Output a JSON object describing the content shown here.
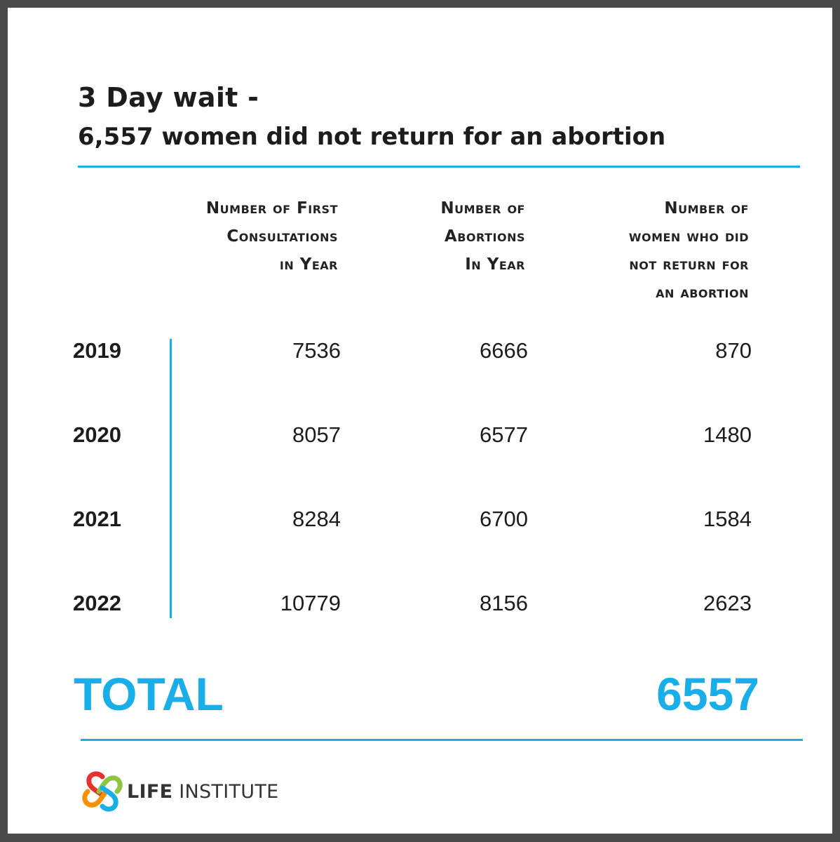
{
  "title": "3 Day wait -",
  "subtitle": "6,557 women did not return for an abortion",
  "colors": {
    "accent": "#1aaee6",
    "text": "#1c1c1c",
    "logo_red": "#e5322d",
    "logo_orange": "#f39200",
    "logo_green": "#8cc63f",
    "logo_blue": "#1aaee6"
  },
  "chart_data": {
    "type": "table",
    "columns": [
      "Number of First Consultations in Year",
      "Number of Abortions In Year",
      "Number of women who did not return for an abortion"
    ],
    "column_lines": [
      [
        "Number of First",
        "Consultations",
        "in Year"
      ],
      [
        "Number of",
        "Abortions",
        "In Year"
      ],
      [
        "Number of",
        "women who did",
        "not return for",
        "an abortion"
      ]
    ],
    "rows": [
      {
        "year": "2019",
        "values": [
          "7536",
          "6666",
          "870"
        ]
      },
      {
        "year": "2020",
        "values": [
          "8057",
          "6577",
          "1480"
        ]
      },
      {
        "year": "2021",
        "values": [
          "8284",
          "6700",
          "1584"
        ]
      },
      {
        "year": "2022",
        "values": [
          "10779",
          "8156",
          "2623"
        ]
      }
    ],
    "total_label": "TOTAL",
    "total_value": "6557"
  },
  "logo": {
    "icon": "interlocking-hearts-logo-icon",
    "name_bold": "LIFE",
    "name_rest": " INSTITUTE"
  }
}
